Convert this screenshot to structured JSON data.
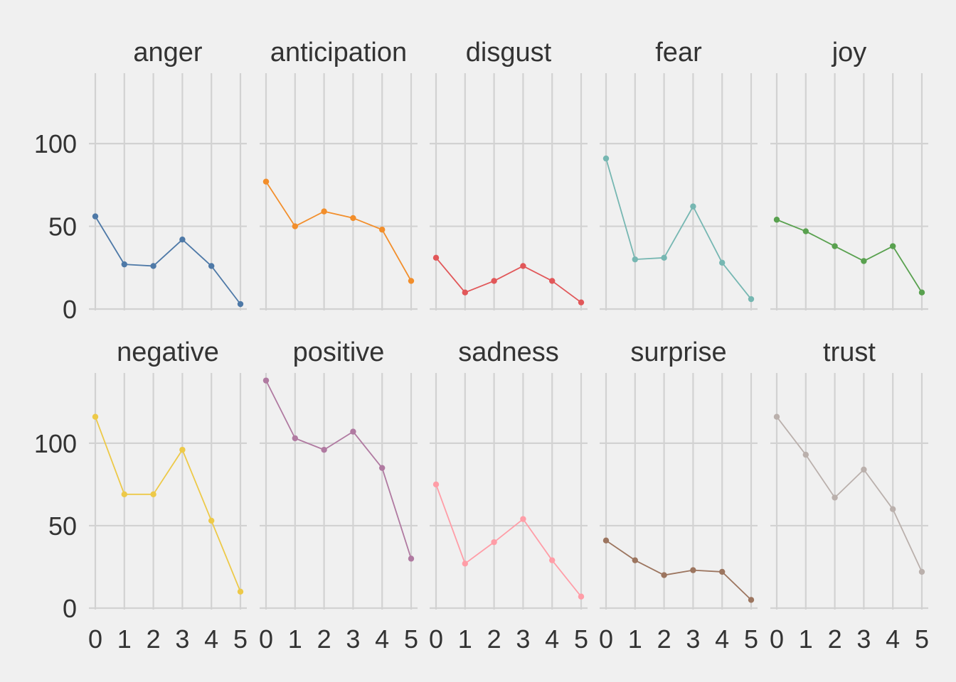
{
  "chart_data": {
    "type": "line",
    "layout": "small-multiples",
    "facet_rows": 2,
    "facet_cols": 5,
    "x": [
      0,
      1,
      2,
      3,
      4,
      5
    ],
    "xlim": [
      0,
      5
    ],
    "ylim": [
      0,
      140
    ],
    "yticks": [
      0,
      50,
      100
    ],
    "xlabel": "",
    "ylabel": "",
    "grid": true,
    "series": [
      {
        "name": "anger",
        "color": "#4e79a7",
        "values": [
          56,
          27,
          26,
          42,
          26,
          3
        ]
      },
      {
        "name": "anticipation",
        "color": "#f28e2b",
        "values": [
          77,
          50,
          59,
          55,
          48,
          17
        ]
      },
      {
        "name": "disgust",
        "color": "#e15759",
        "values": [
          31,
          10,
          17,
          26,
          17,
          4
        ]
      },
      {
        "name": "fear",
        "color": "#76b7b2",
        "values": [
          91,
          30,
          31,
          62,
          28,
          6
        ]
      },
      {
        "name": "joy",
        "color": "#59a14f",
        "values": [
          54,
          47,
          38,
          29,
          38,
          10
        ]
      },
      {
        "name": "negative",
        "color": "#edc948",
        "values": [
          116,
          69,
          69,
          96,
          53,
          10
        ]
      },
      {
        "name": "positive",
        "color": "#b07aa1",
        "values": [
          138,
          103,
          96,
          107,
          85,
          30
        ]
      },
      {
        "name": "sadness",
        "color": "#ff9da7",
        "values": [
          75,
          27,
          40,
          54,
          29,
          7
        ]
      },
      {
        "name": "surprise",
        "color": "#9c755f",
        "values": [
          41,
          29,
          20,
          23,
          22,
          5
        ]
      },
      {
        "name": "trust",
        "color": "#bab0ac",
        "values": [
          116,
          93,
          67,
          84,
          60,
          22
        ]
      }
    ]
  }
}
